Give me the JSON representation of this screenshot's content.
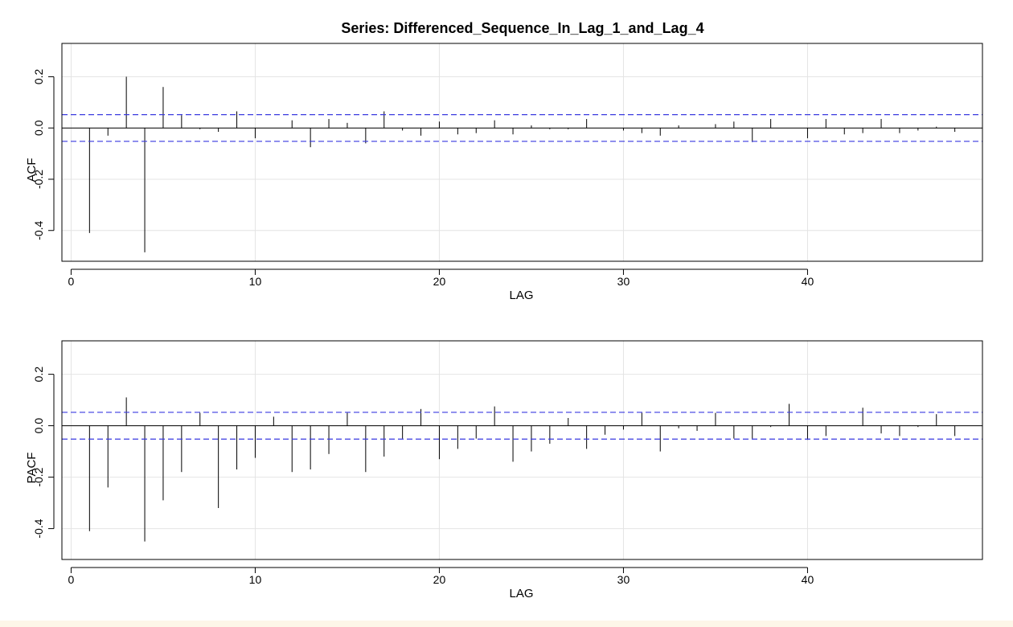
{
  "chart_data": [
    {
      "type": "bar",
      "title": "Series:  Differenced_Sequence_In_Lag_1_and_Lag_4",
      "xlabel": "LAG",
      "ylabel": "ACF",
      "x_ticks": [
        "0",
        "10",
        "20",
        "30",
        "40"
      ],
      "y_ticks": [
        "-0.4",
        "-0.2",
        "0.0",
        "0.2"
      ],
      "xlim": [
        -0.5,
        49.5
      ],
      "ylim": [
        -0.52,
        0.33
      ],
      "grid": true,
      "confidence_band": 0.052,
      "colors": {
        "band": "#3a3ae0",
        "stem": "#000000",
        "grid": "#e4e4e4"
      },
      "lags": [
        1,
        2,
        3,
        4,
        5,
        6,
        7,
        8,
        9,
        10,
        11,
        12,
        13,
        14,
        15,
        16,
        17,
        18,
        19,
        20,
        21,
        22,
        23,
        24,
        25,
        26,
        27,
        28,
        29,
        30,
        31,
        32,
        33,
        34,
        35,
        36,
        37,
        38,
        39,
        40,
        41,
        42,
        43,
        44,
        45,
        46,
        47,
        48
      ],
      "values": [
        -0.41,
        -0.03,
        0.2,
        -0.485,
        0.16,
        0.05,
        -0.005,
        -0.015,
        0.065,
        -0.04,
        0.0,
        0.03,
        -0.075,
        0.035,
        0.02,
        -0.06,
        0.065,
        -0.01,
        -0.03,
        0.025,
        -0.025,
        -0.02,
        0.03,
        -0.025,
        0.01,
        -0.005,
        -0.005,
        0.035,
        0.0,
        -0.01,
        -0.02,
        -0.03,
        0.01,
        0.0,
        0.015,
        0.025,
        -0.055,
        0.035,
        0.0,
        -0.04,
        0.035,
        -0.025,
        -0.02,
        0.035,
        -0.02,
        -0.01,
        0.005,
        -0.015
      ]
    },
    {
      "type": "bar",
      "xlabel": "LAG",
      "ylabel": "PACF",
      "x_ticks": [
        "0",
        "10",
        "20",
        "30",
        "40"
      ],
      "y_ticks": [
        "-0.4",
        "-0.2",
        "0.0",
        "0.2"
      ],
      "xlim": [
        -0.5,
        49.5
      ],
      "ylim": [
        -0.52,
        0.33
      ],
      "grid": true,
      "confidence_band": 0.052,
      "colors": {
        "band": "#3a3ae0",
        "stem": "#000000",
        "grid": "#e4e4e4"
      },
      "lags": [
        1,
        2,
        3,
        4,
        5,
        6,
        7,
        8,
        9,
        10,
        11,
        12,
        13,
        14,
        15,
        16,
        17,
        18,
        19,
        20,
        21,
        22,
        23,
        24,
        25,
        26,
        27,
        28,
        29,
        30,
        31,
        32,
        33,
        34,
        35,
        36,
        37,
        38,
        39,
        40,
        41,
        42,
        43,
        44,
        45,
        46,
        47,
        48
      ],
      "values": [
        -0.41,
        -0.24,
        0.11,
        -0.45,
        -0.29,
        -0.18,
        0.05,
        -0.32,
        -0.17,
        -0.125,
        0.035,
        -0.18,
        -0.17,
        -0.11,
        0.05,
        -0.18,
        -0.12,
        -0.05,
        0.065,
        -0.13,
        -0.09,
        -0.05,
        0.075,
        -0.14,
        -0.1,
        -0.07,
        0.03,
        -0.09,
        -0.035,
        -0.015,
        0.05,
        -0.1,
        -0.01,
        -0.02,
        0.05,
        -0.05,
        -0.05,
        -0.005,
        0.085,
        -0.055,
        -0.04,
        0.0,
        0.07,
        -0.03,
        -0.04,
        -0.005,
        0.045,
        -0.04
      ]
    }
  ]
}
